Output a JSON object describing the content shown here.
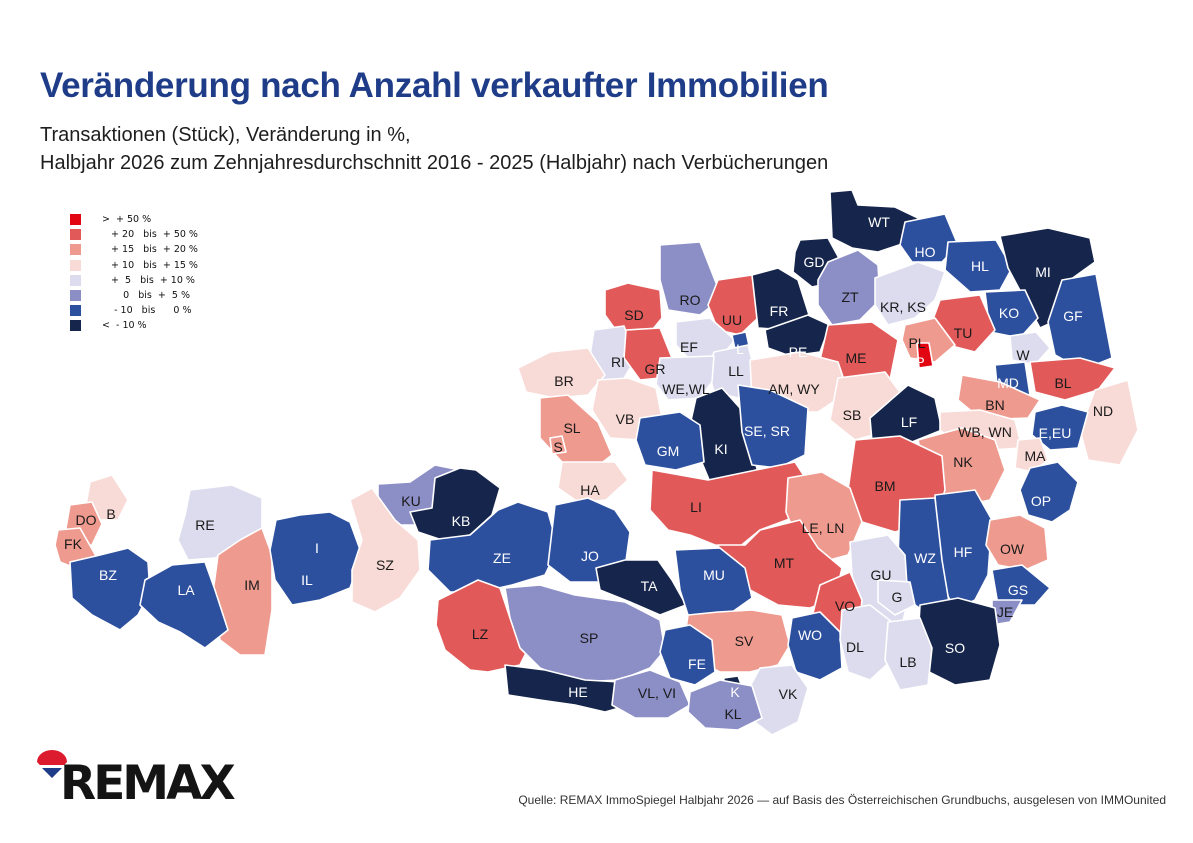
{
  "header": {
    "title": "Veränderung nach Anzahl verkaufter Immobilien",
    "subtitle_line1": "Transaktionen (Stück), Veränderung in %,",
    "subtitle_line2": "Halbjahr 2026 zum Zehnjahresdurchschnitt 2016 - 2025 (Halbjahr) nach Verbücherungen"
  },
  "legend": {
    "items": [
      {
        "key": "c1",
        "label": ">  + 50 %",
        "color": "#e20613"
      },
      {
        "key": "c2",
        "label": "   + 20   bis  + 50 %",
        "color": "#e15a59"
      },
      {
        "key": "c3",
        "label": "   + 15   bis  + 20 %",
        "color": "#ee9a8f"
      },
      {
        "key": "c4",
        "label": "   + 10   bis  + 15 %",
        "color": "#f8dad6"
      },
      {
        "key": "c5",
        "label": "   +  5   bis  + 10 %",
        "color": "#dcdcee"
      },
      {
        "key": "c6",
        "label": "       0   bis  +  5 %",
        "color": "#8c8ec6"
      },
      {
        "key": "c7",
        "label": "    - 10   bis      0 %",
        "color": "#2c4f9e"
      },
      {
        "key": "c8",
        "label": "<  - 10 %",
        "color": "#16254b"
      }
    ]
  },
  "districts": [
    {
      "code": "WT",
      "cls": "c8"
    },
    {
      "code": "GD",
      "cls": "c8"
    },
    {
      "code": "HO",
      "cls": "c7"
    },
    {
      "code": "HL",
      "cls": "c7"
    },
    {
      "code": "MI",
      "cls": "c8"
    },
    {
      "code": "ZT",
      "cls": "c6"
    },
    {
      "code": "KR, KS",
      "cls": "c5"
    },
    {
      "code": "KO",
      "cls": "c7"
    },
    {
      "code": "GF",
      "cls": "c7"
    },
    {
      "code": "TU",
      "cls": "c2"
    },
    {
      "code": "RO",
      "cls": "c6"
    },
    {
      "code": "UU",
      "cls": "c2"
    },
    {
      "code": "FR",
      "cls": "c8"
    },
    {
      "code": "PE",
      "cls": "c8"
    },
    {
      "code": "SD",
      "cls": "c2"
    },
    {
      "code": "EF",
      "cls": "c5"
    },
    {
      "code": "L",
      "cls": "c7"
    },
    {
      "code": "PL",
      "cls": "c3"
    },
    {
      "code": "P",
      "cls": "c1"
    },
    {
      "code": "ME",
      "cls": "c2"
    },
    {
      "code": "W",
      "cls": "c5"
    },
    {
      "code": "RI",
      "cls": "c5"
    },
    {
      "code": "GR",
      "cls": "c2"
    },
    {
      "code": "LL",
      "cls": "c5"
    },
    {
      "code": "WE,WL",
      "cls": "c5"
    },
    {
      "code": "AM, WY",
      "cls": "c4"
    },
    {
      "code": "MD",
      "cls": "c7"
    },
    {
      "code": "BL",
      "cls": "c2"
    },
    {
      "code": "BR",
      "cls": "c4"
    },
    {
      "code": "BN",
      "cls": "c3"
    },
    {
      "code": "VB",
      "cls": "c4"
    },
    {
      "code": "SB",
      "cls": "c4"
    },
    {
      "code": "ND",
      "cls": "c4"
    },
    {
      "code": "SL",
      "cls": "c3"
    },
    {
      "code": "S",
      "cls": "c3"
    },
    {
      "code": "KI",
      "cls": "c8"
    },
    {
      "code": "SE, SR",
      "cls": "c7"
    },
    {
      "code": "LF",
      "cls": "c8"
    },
    {
      "code": "WB, WN",
      "cls": "c4"
    },
    {
      "code": "E,EU",
      "cls": "c7"
    },
    {
      "code": "GM",
      "cls": "c7"
    },
    {
      "code": "MA",
      "cls": "c4"
    },
    {
      "code": "NK",
      "cls": "c3"
    },
    {
      "code": "HA",
      "cls": "c4"
    },
    {
      "code": "BM",
      "cls": "c2"
    },
    {
      "code": "LI",
      "cls": "c2"
    },
    {
      "code": "KU",
      "cls": "c6"
    },
    {
      "code": "KB",
      "cls": "c8"
    },
    {
      "code": "OP",
      "cls": "c7"
    },
    {
      "code": "RE",
      "cls": "c5"
    },
    {
      "code": "LE, LN",
      "cls": "c3"
    },
    {
      "code": "B",
      "cls": "c4"
    },
    {
      "code": "DO",
      "cls": "c3"
    },
    {
      "code": "FK",
      "cls": "c3"
    },
    {
      "code": "I",
      "cls": "c8"
    },
    {
      "code": "ZE",
      "cls": "c7"
    },
    {
      "code": "JO",
      "cls": "c7"
    },
    {
      "code": "HF",
      "cls": "c7"
    },
    {
      "code": "OW",
      "cls": "c3"
    },
    {
      "code": "WZ",
      "cls": "c7"
    },
    {
      "code": "MT",
      "cls": "c2"
    },
    {
      "code": "IM",
      "cls": "c3"
    },
    {
      "code": "IL",
      "cls": "c7"
    },
    {
      "code": "SZ",
      "cls": "c4"
    },
    {
      "code": "BZ",
      "cls": "c7"
    },
    {
      "code": "GU",
      "cls": "c5"
    },
    {
      "code": "LA",
      "cls": "c7"
    },
    {
      "code": "TA",
      "cls": "c8"
    },
    {
      "code": "MU",
      "cls": "c7"
    },
    {
      "code": "G",
      "cls": "c5"
    },
    {
      "code": "GS",
      "cls": "c7"
    },
    {
      "code": "VO",
      "cls": "c2"
    },
    {
      "code": "JE",
      "cls": "c6"
    },
    {
      "code": "LZ",
      "cls": "c2"
    },
    {
      "code": "SP",
      "cls": "c6"
    },
    {
      "code": "SV",
      "cls": "c3"
    },
    {
      "code": "WO",
      "cls": "c7"
    },
    {
      "code": "SO",
      "cls": "c8"
    },
    {
      "code": "DL",
      "cls": "c5"
    },
    {
      "code": "FE",
      "cls": "c7"
    },
    {
      "code": "LB",
      "cls": "c5"
    },
    {
      "code": "HE",
      "cls": "c8"
    },
    {
      "code": "VL, VI",
      "cls": "c6"
    },
    {
      "code": "K",
      "cls": "c8"
    },
    {
      "code": "VK",
      "cls": "c5"
    },
    {
      "code": "KL",
      "cls": "c6"
    }
  ],
  "brand": {
    "logo_text": "REMAX"
  },
  "footer": {
    "source": "Quelle: REMAX ImmoSpiegel Halbjahr 2026 — auf Basis des Österreichischen Grundbuchs, ausgelesen von IMMOunited"
  }
}
